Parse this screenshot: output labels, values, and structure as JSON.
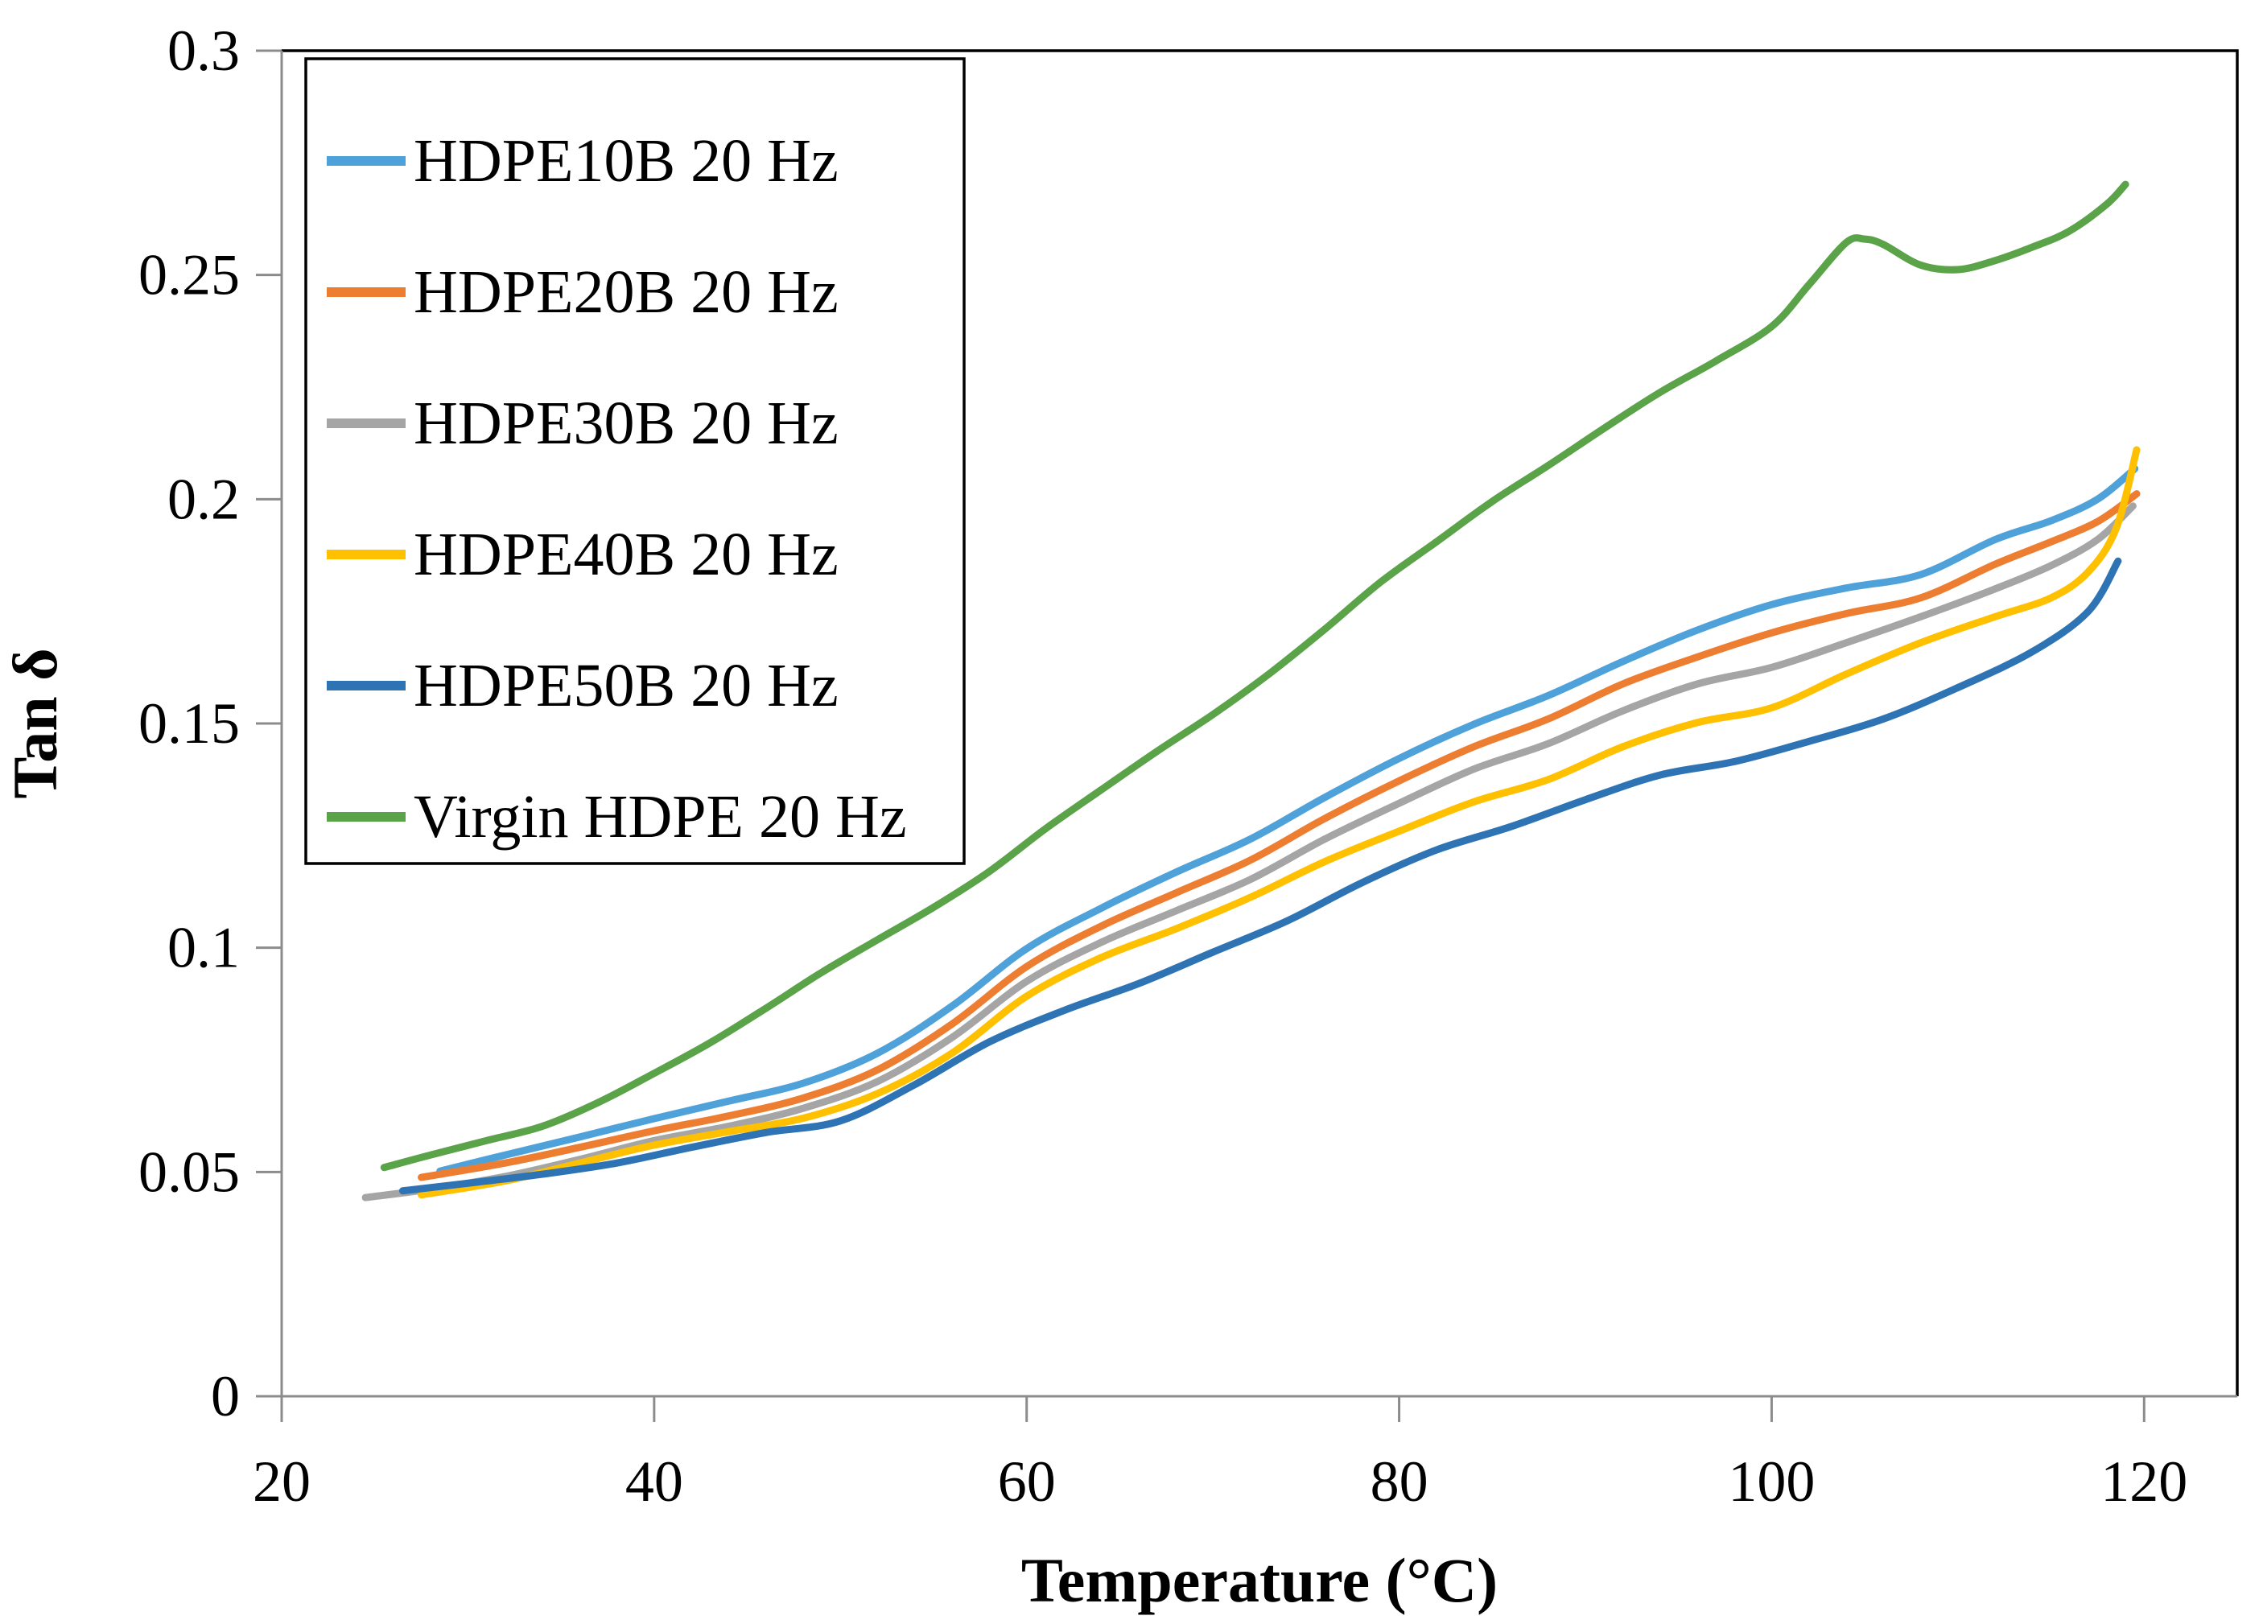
{
  "chart_data": {
    "type": "line",
    "title": "",
    "xlabel": "Temperature (°C)",
    "ylabel": "Tan δ",
    "xlim": [
      20,
      125
    ],
    "ylim": [
      0,
      0.3
    ],
    "x_ticks": [
      20,
      40,
      60,
      80,
      100,
      120
    ],
    "y_ticks": [
      0,
      0.05,
      0.1,
      0.15,
      0.2,
      0.25,
      0.3
    ],
    "y_tick_labels": [
      "0",
      "0.05",
      "0.1",
      "0.15",
      "0.2",
      "0.25",
      "0.3"
    ],
    "x_tick_labels": [
      "20",
      "40",
      "60",
      "80",
      "100",
      "120"
    ],
    "grid": false,
    "legend_position": "top-left",
    "frame_color": "#000000",
    "axis_color": "#8c8c8c",
    "series": [
      {
        "name": "HDPE10B 20 Hz",
        "color": "#4FA2D9",
        "points": [
          [
            28.5,
            0.0502
          ],
          [
            32,
            0.0538
          ],
          [
            36,
            0.0578
          ],
          [
            40,
            0.0619
          ],
          [
            44,
            0.0658
          ],
          [
            48,
            0.0698
          ],
          [
            52,
            0.0765
          ],
          [
            56,
            0.087
          ],
          [
            60,
            0.0998
          ],
          [
            64,
            0.1088
          ],
          [
            68,
            0.1168
          ],
          [
            72,
            0.1242
          ],
          [
            76,
            0.1335
          ],
          [
            80,
            0.1422
          ],
          [
            84,
            0.1498
          ],
          [
            88,
            0.1562
          ],
          [
            92,
            0.1638
          ],
          [
            96,
            0.1708
          ],
          [
            100,
            0.1765
          ],
          [
            104,
            0.1802
          ],
          [
            108,
            0.1832
          ],
          [
            112,
            0.191
          ],
          [
            115,
            0.1952
          ],
          [
            117.5,
            0.2
          ],
          [
            119.5,
            0.2068
          ]
        ]
      },
      {
        "name": "HDPE20B 20 Hz",
        "color": "#ED7D31",
        "points": [
          [
            27.5,
            0.0488
          ],
          [
            32,
            0.052
          ],
          [
            36,
            0.0555
          ],
          [
            40,
            0.0592
          ],
          [
            44,
            0.0625
          ],
          [
            48,
            0.0665
          ],
          [
            52,
            0.0728
          ],
          [
            56,
            0.083
          ],
          [
            60,
            0.0958
          ],
          [
            64,
            0.1048
          ],
          [
            68,
            0.1122
          ],
          [
            72,
            0.1195
          ],
          [
            76,
            0.1288
          ],
          [
            80,
            0.1372
          ],
          [
            84,
            0.1448
          ],
          [
            88,
            0.151
          ],
          [
            92,
            0.1588
          ],
          [
            96,
            0.1648
          ],
          [
            100,
            0.1702
          ],
          [
            104,
            0.1745
          ],
          [
            108,
            0.178
          ],
          [
            112,
            0.1855
          ],
          [
            115,
            0.1905
          ],
          [
            117.5,
            0.195
          ],
          [
            119.6,
            0.2012
          ]
        ]
      },
      {
        "name": "HDPE30B 20 Hz",
        "color": "#A5A5A5",
        "points": [
          [
            24.5,
            0.0443
          ],
          [
            28,
            0.0462
          ],
          [
            32,
            0.049
          ],
          [
            36,
            0.0528
          ],
          [
            40,
            0.057
          ],
          [
            44,
            0.0602
          ],
          [
            48,
            0.0642
          ],
          [
            52,
            0.0702
          ],
          [
            56,
            0.08
          ],
          [
            60,
            0.0925
          ],
          [
            64,
            0.1012
          ],
          [
            68,
            0.1082
          ],
          [
            72,
            0.1152
          ],
          [
            76,
            0.1242
          ],
          [
            80,
            0.1322
          ],
          [
            84,
            0.1398
          ],
          [
            88,
            0.1455
          ],
          [
            92,
            0.1528
          ],
          [
            96,
            0.1588
          ],
          [
            100,
            0.1625
          ],
          [
            104,
            0.168
          ],
          [
            108,
            0.1738
          ],
          [
            112,
            0.18
          ],
          [
            115,
            0.1852
          ],
          [
            117.5,
            0.191
          ],
          [
            119.4,
            0.1985
          ]
        ]
      },
      {
        "name": "HDPE40B 20 Hz",
        "color": "#FFC000",
        "points": [
          [
            27.5,
            0.0449
          ],
          [
            32,
            0.048
          ],
          [
            36,
            0.052
          ],
          [
            40,
            0.056
          ],
          [
            44,
            0.059
          ],
          [
            48,
            0.062
          ],
          [
            52,
            0.0675
          ],
          [
            56,
            0.0765
          ],
          [
            60,
            0.0892
          ],
          [
            64,
            0.0978
          ],
          [
            68,
            0.1042
          ],
          [
            72,
            0.1112
          ],
          [
            76,
            0.1192
          ],
          [
            80,
            0.126
          ],
          [
            84,
            0.1325
          ],
          [
            88,
            0.1375
          ],
          [
            92,
            0.1448
          ],
          [
            96,
            0.1502
          ],
          [
            100,
            0.1535
          ],
          [
            104,
            0.161
          ],
          [
            108,
            0.168
          ],
          [
            112,
            0.1738
          ],
          [
            115,
            0.178
          ],
          [
            117,
            0.1838
          ],
          [
            118.5,
            0.1935
          ],
          [
            119.6,
            0.211
          ]
        ]
      },
      {
        "name": "HDPE50B 20 Hz",
        "color": "#2E74B5",
        "points": [
          [
            26.5,
            0.0458
          ],
          [
            30,
            0.0475
          ],
          [
            34,
            0.0495
          ],
          [
            38,
            0.052
          ],
          [
            42,
            0.0555
          ],
          [
            46,
            0.0588
          ],
          [
            50,
            0.0614
          ],
          [
            54,
            0.0695
          ],
          [
            58,
            0.079
          ],
          [
            62,
            0.086
          ],
          [
            66,
            0.092
          ],
          [
            70,
            0.099
          ],
          [
            74,
            0.106
          ],
          [
            78,
            0.1145
          ],
          [
            82,
            0.1218
          ],
          [
            86,
            0.127
          ],
          [
            90,
            0.133
          ],
          [
            94,
            0.1385
          ],
          [
            98,
            0.1415
          ],
          [
            102,
            0.146
          ],
          [
            106,
            0.151
          ],
          [
            110,
            0.158
          ],
          [
            114,
            0.166
          ],
          [
            117,
            0.175
          ],
          [
            118.6,
            0.1862
          ]
        ]
      },
      {
        "name": "Virgin HDPE 20 Hz",
        "color": "#5AA348",
        "points": [
          [
            25.5,
            0.051
          ],
          [
            28,
            0.0538
          ],
          [
            31,
            0.057
          ],
          [
            34,
            0.0602
          ],
          [
            37,
            0.0655
          ],
          [
            40,
            0.072
          ],
          [
            43,
            0.0788
          ],
          [
            46,
            0.0865
          ],
          [
            49,
            0.0945
          ],
          [
            52,
            0.1018
          ],
          [
            55,
            0.109
          ],
          [
            58,
            0.117
          ],
          [
            61,
            0.1265
          ],
          [
            64,
            0.1352
          ],
          [
            67,
            0.1438
          ],
          [
            70,
            0.152
          ],
          [
            73,
            0.161
          ],
          [
            76,
            0.171
          ],
          [
            79,
            0.1815
          ],
          [
            82,
            0.1905
          ],
          [
            85,
            0.1995
          ],
          [
            88,
            0.2075
          ],
          [
            91,
            0.2158
          ],
          [
            94,
            0.2238
          ],
          [
            97,
            0.2308
          ],
          [
            100,
            0.2385
          ],
          [
            102,
            0.2478
          ],
          [
            104,
            0.2572
          ],
          [
            105,
            0.258
          ],
          [
            106,
            0.2568
          ],
          [
            108,
            0.2522
          ],
          [
            110,
            0.2512
          ],
          [
            112,
            0.2532
          ],
          [
            114,
            0.2562
          ],
          [
            116,
            0.2598
          ],
          [
            118,
            0.2658
          ],
          [
            119,
            0.2702
          ]
        ]
      }
    ]
  }
}
